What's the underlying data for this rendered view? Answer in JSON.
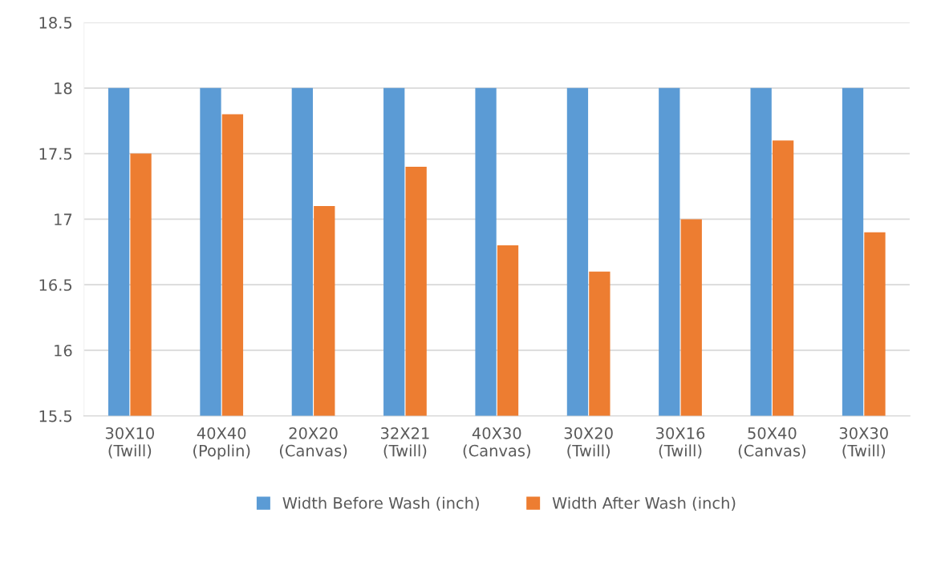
{
  "chart_data": {
    "type": "bar",
    "categories": [
      "30X10\n(Twill)",
      "40X40\n(Poplin)",
      "20X20\n(Canvas)",
      "32X21\n(Twill)",
      "40X30\n(Canvas)",
      "30X20\n(Twill)",
      "30X16\n(Twill)",
      "50X40\n(Canvas)",
      "30X30\n(Twill)"
    ],
    "series": [
      {
        "name": "Width Before Wash (inch)",
        "color": "#5b9bd5",
        "values": [
          18,
          18,
          18,
          18,
          18,
          18,
          18,
          18,
          18
        ]
      },
      {
        "name": "Width After Wash (inch)",
        "color": "#ed7d31",
        "values": [
          17.5,
          17.8,
          17.1,
          17.4,
          16.8,
          16.6,
          17.0,
          17.6,
          16.9
        ]
      }
    ],
    "ylim": [
      15.5,
      18.5
    ],
    "yticks": [
      15.5,
      16,
      16.5,
      17,
      17.5,
      18,
      18.5
    ],
    "grid": "y",
    "legend": "bottom"
  }
}
